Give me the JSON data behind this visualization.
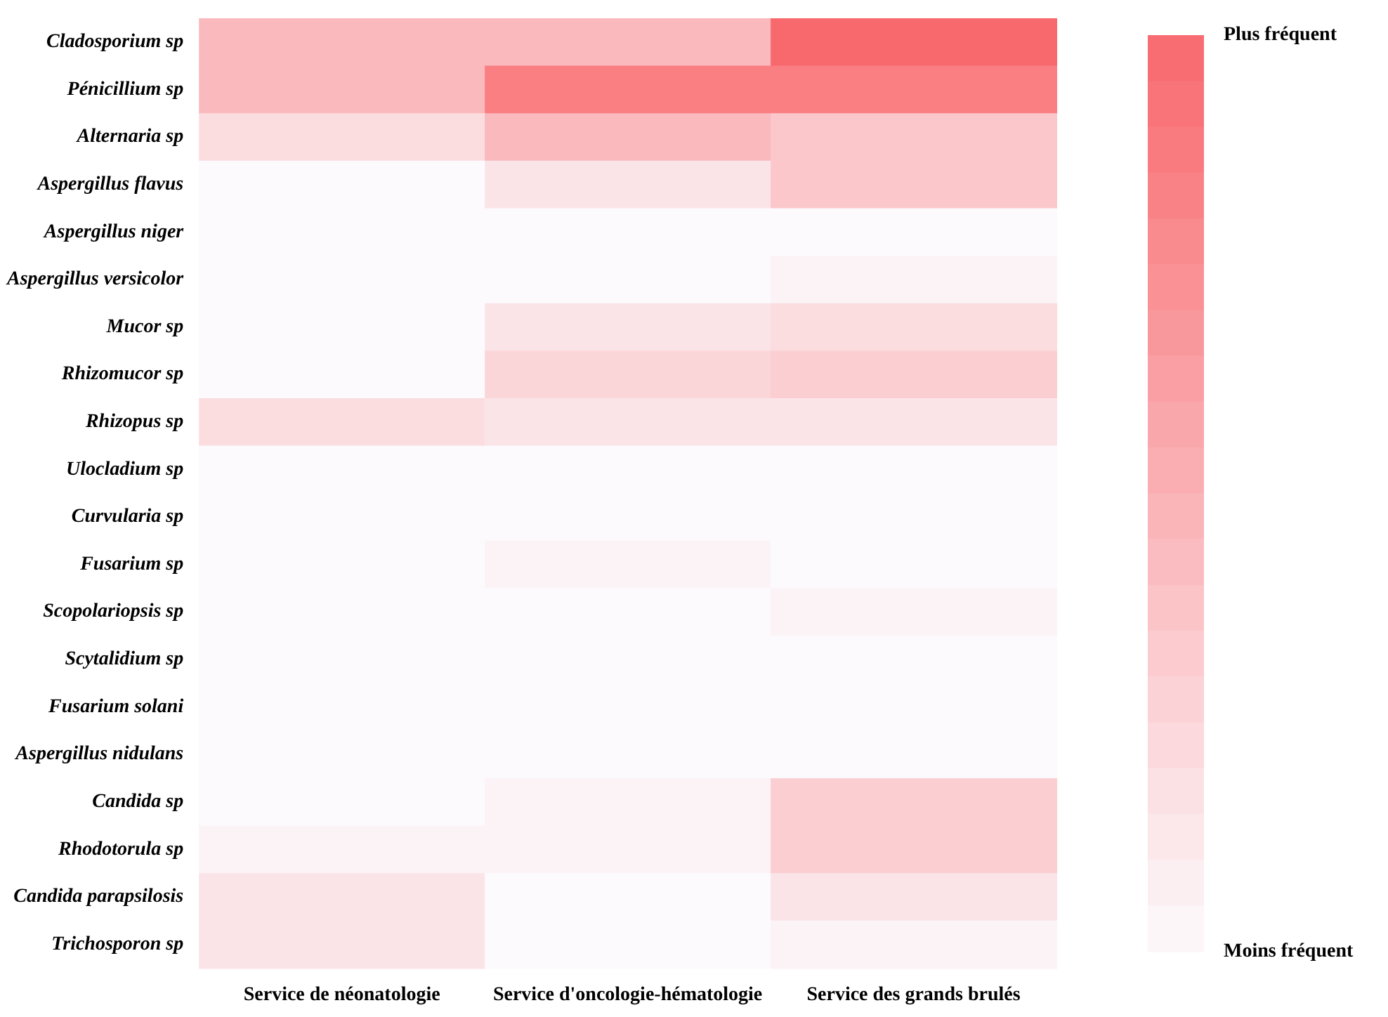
{
  "chart_data": {
    "type": "heatmap",
    "categories": [
      "Service de néonatologie",
      "Service d'oncologie-hématologie",
      "Service des grands brulés"
    ],
    "y_categories": [
      "Cladosporium sp",
      "Pénicillium sp",
      "Alternaria sp",
      "Aspergillus flavus",
      "Aspergillus niger",
      "Aspergillus versicolor",
      "Mucor sp",
      "Rhizomucor sp",
      "Rhizopus sp",
      "Ulocladium sp",
      "Curvularia sp",
      "Fusarium sp",
      "Scopolariopsis sp",
      "Scytalidium sp",
      "Fusarium solani",
      "Aspergillus nidulans",
      "Candida sp",
      "Rhodotorula sp",
      "Candida parapsilosis",
      "Trichosporon sp"
    ],
    "cells": [
      [
        0.45,
        0.45,
        1.0
      ],
      [
        0.45,
        0.85,
        0.85
      ],
      [
        0.2,
        0.45,
        0.35
      ],
      [
        0,
        0.15,
        0.35
      ],
      [
        0,
        0,
        0
      ],
      [
        0,
        0,
        0.05
      ],
      [
        0,
        0.15,
        0.2
      ],
      [
        0,
        0.25,
        0.3
      ],
      [
        0.2,
        0.15,
        0.15
      ],
      [
        0,
        0,
        0
      ],
      [
        0,
        0,
        0
      ],
      [
        0,
        0.05,
        0
      ],
      [
        0,
        0,
        0.05
      ],
      [
        0,
        0,
        0
      ],
      [
        0,
        0,
        0
      ],
      [
        0,
        0,
        0
      ],
      [
        0,
        0.05,
        0.3
      ],
      [
        0.05,
        0.05,
        0.3
      ],
      [
        0.15,
        0,
        0.15
      ],
      [
        0.15,
        0,
        0.05
      ]
    ],
    "clim": [
      0,
      1
    ],
    "cticks": [
      {
        "value": 1,
        "label": "Plus fréquent"
      },
      {
        "value": 0,
        "label": "Moins fréquent"
      }
    ]
  }
}
